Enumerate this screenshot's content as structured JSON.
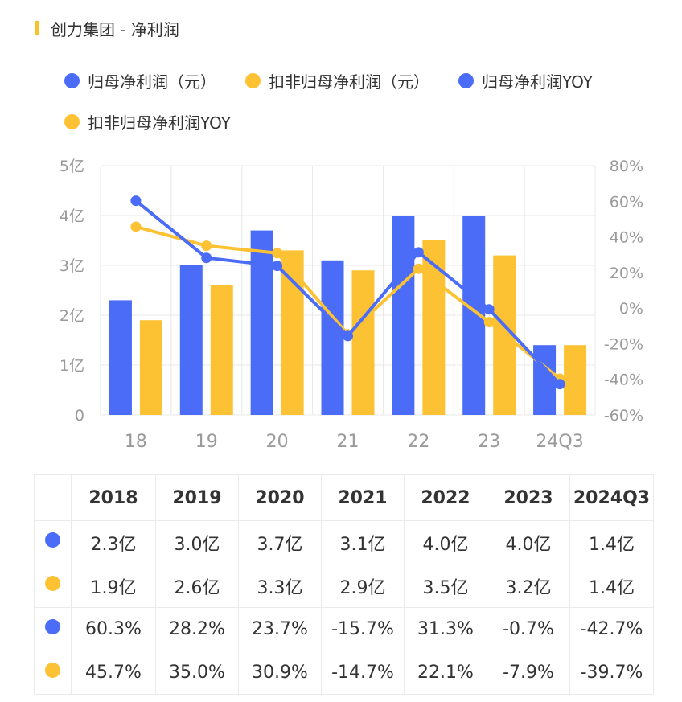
{
  "title": "创力集团 - 净利润",
  "colors": {
    "blue": "#4a6cf7",
    "yellow": "#fcc233",
    "accent": "#f7c22c",
    "grid": "#e8e8e8"
  },
  "legend": [
    {
      "label": "归母净利润（元）",
      "color": "#4a6cf7"
    },
    {
      "label": "扣非归母净利润（元）",
      "color": "#fcc233"
    },
    {
      "label": "归母净利润YOY",
      "color": "#4a6cf7"
    },
    {
      "label": "扣非归母净利润YOY",
      "color": "#fcc233"
    }
  ],
  "chart_data": {
    "type": "bar",
    "title": "创力集团 - 净利润",
    "categories": [
      "18",
      "19",
      "20",
      "21",
      "22",
      "23",
      "24Q3"
    ],
    "left_axis": {
      "ticks": [
        "0",
        "1亿",
        "2亿",
        "3亿",
        "4亿",
        "5亿"
      ],
      "range": [
        0,
        5
      ],
      "unit": "亿"
    },
    "right_axis": {
      "ticks": [
        "-60%",
        "-40%",
        "-20%",
        "0%",
        "20%",
        "40%",
        "60%",
        "80%"
      ],
      "range": [
        -60,
        80
      ],
      "unit": "%"
    },
    "grid": true,
    "legend_position": "top",
    "series": [
      {
        "name": "归母净利润（元）",
        "kind": "bar",
        "axis": "left",
        "color": "#4a6cf7",
        "values": [
          2.3,
          3.0,
          3.7,
          3.1,
          4.0,
          4.0,
          1.4
        ]
      },
      {
        "name": "扣非归母净利润（元）",
        "kind": "bar",
        "axis": "left",
        "color": "#fcc233",
        "values": [
          1.9,
          2.6,
          3.3,
          2.9,
          3.5,
          3.2,
          1.4
        ]
      },
      {
        "name": "归母净利润YOY",
        "kind": "line",
        "axis": "right",
        "color": "#4a6cf7",
        "values": [
          60.3,
          28.2,
          23.7,
          -15.7,
          31.3,
          -0.7,
          -42.7
        ]
      },
      {
        "name": "扣非归母净利润YOY",
        "kind": "line",
        "axis": "right",
        "color": "#fcc233",
        "values": [
          45.7,
          35.0,
          30.9,
          -14.7,
          22.1,
          -7.9,
          -39.7
        ]
      }
    ]
  },
  "table": {
    "headers": [
      "2018",
      "2019",
      "2020",
      "2021",
      "2022",
      "2023",
      "2024Q3"
    ],
    "rows": [
      {
        "color": "#4a6cf7",
        "cells": [
          "2.3亿",
          "3.0亿",
          "3.7亿",
          "3.1亿",
          "4.0亿",
          "4.0亿",
          "1.4亿"
        ]
      },
      {
        "color": "#fcc233",
        "cells": [
          "1.9亿",
          "2.6亿",
          "3.3亿",
          "2.9亿",
          "3.5亿",
          "3.2亿",
          "1.4亿"
        ]
      },
      {
        "color": "#4a6cf7",
        "cells": [
          "60.3%",
          "28.2%",
          "23.7%",
          "-15.7%",
          "31.3%",
          "-0.7%",
          "-42.7%"
        ]
      },
      {
        "color": "#fcc233",
        "cells": [
          "45.7%",
          "35.0%",
          "30.9%",
          "-14.7%",
          "22.1%",
          "-7.9%",
          "-39.7%"
        ]
      }
    ]
  }
}
